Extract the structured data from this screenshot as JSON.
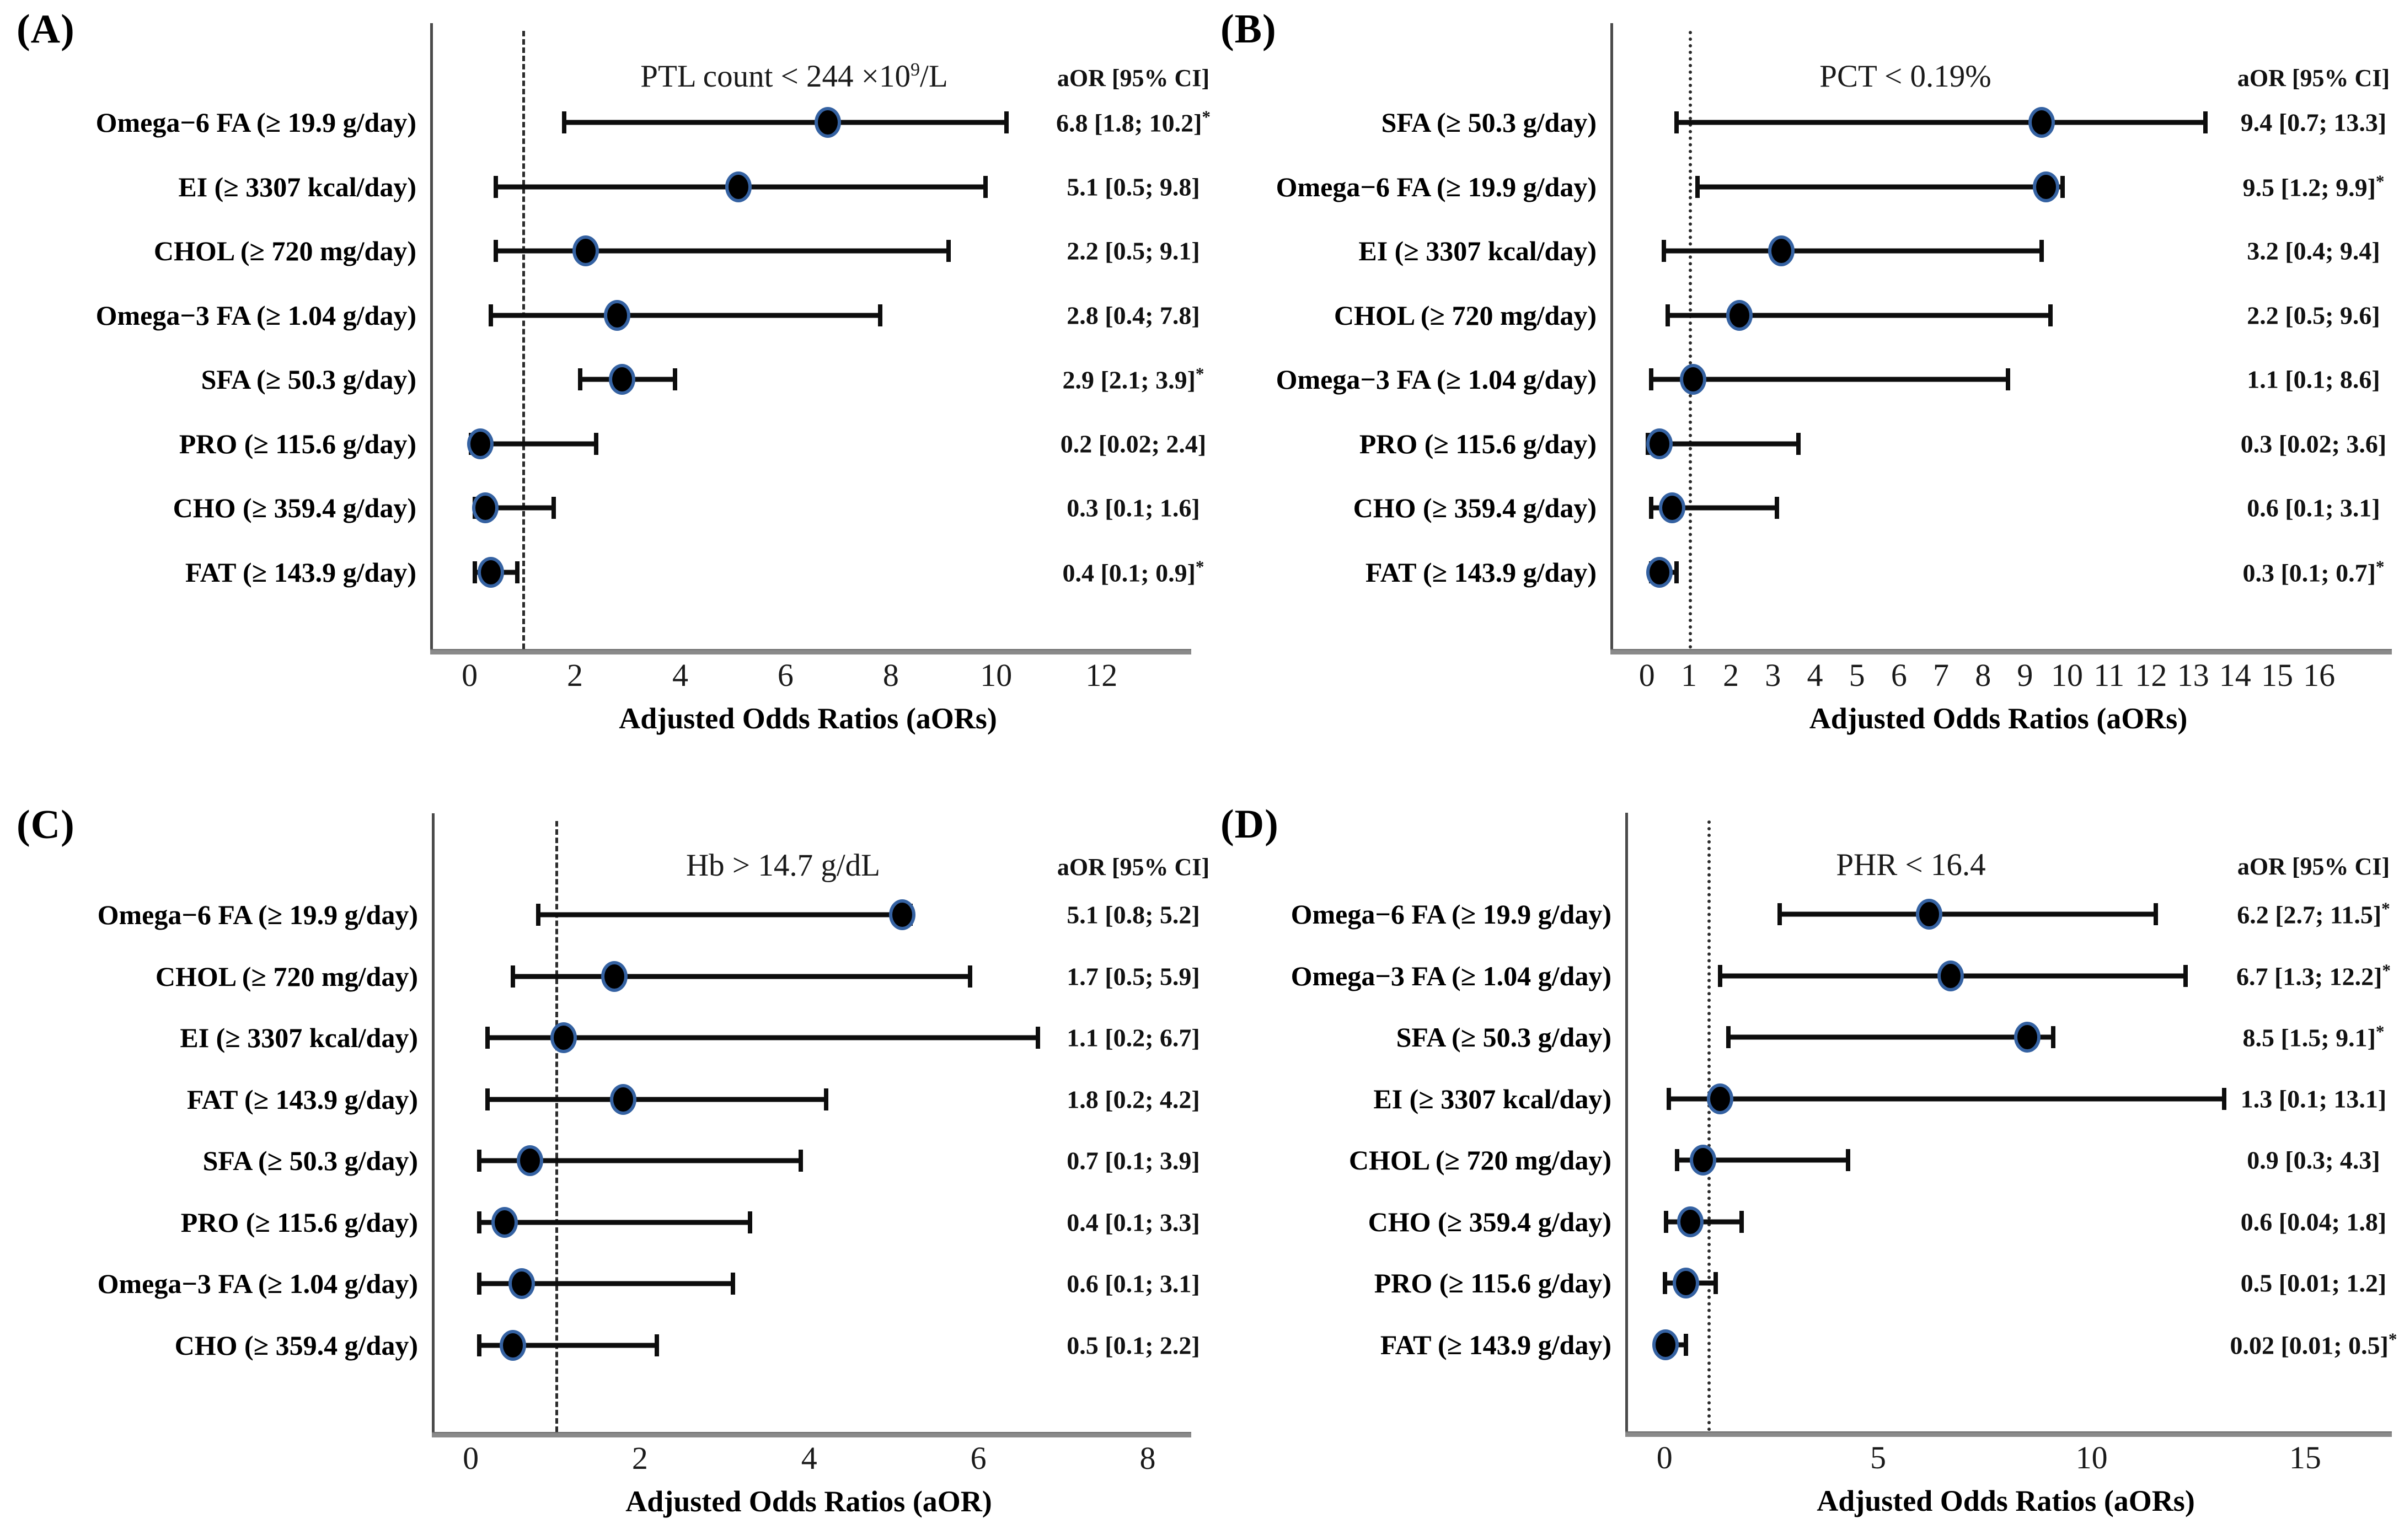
{
  "chart_data": {
    "type": "forest-plot-grid",
    "description": "Four forest plots of adjusted odds ratios (aOR) with 95% CI for dietary intake factors",
    "colors": {
      "marker": "#000000",
      "marker_ring": "#3e73be",
      "ci_line": "#0d0d0d",
      "axis_line": "#8a8a8a",
      "spine": "#4a4a4a",
      "reference_line": "#2b2b2b",
      "text": "#000000",
      "background": "#ffffff"
    },
    "panels": [
      {
        "letter": "(A)",
        "title": {
          "pre": "PTL count < 244 ×10",
          "sup": "9",
          "post": "/L"
        },
        "ci_header": "aOR [95% CI]",
        "xlabel": "Adjusted Odds Ratios (aORs)",
        "xticks": [
          0,
          2,
          4,
          6,
          8,
          10,
          12
        ],
        "xmin": -0.75,
        "xmax": 13.6,
        "reference_x": 1,
        "reference_style": "dashed",
        "rows": [
          {
            "label": "Omega−6 FA (≥ 19.9 g/day)",
            "or": 6.8,
            "lo": 1.8,
            "hi": 10.2,
            "ci_text": "6.8 [1.8; 10.2]",
            "sig": true
          },
          {
            "label": "EI (≥ 3307 kcal/day)",
            "or": 5.1,
            "lo": 0.5,
            "hi": 9.8,
            "ci_text": "5.1 [0.5; 9.8]",
            "sig": false
          },
          {
            "label": "CHOL (≥ 720 mg/day)",
            "or": 2.2,
            "lo": 0.5,
            "hi": 9.1,
            "ci_text": "2.2 [0.5; 9.1]",
            "sig": false
          },
          {
            "label": "Omega−3 FA (≥ 1.04 g/day)",
            "or": 2.8,
            "lo": 0.4,
            "hi": 7.8,
            "ci_text": "2.8 [0.4; 7.8]",
            "sig": false
          },
          {
            "label": "SFA (≥ 50.3 g/day)",
            "or": 2.9,
            "lo": 2.1,
            "hi": 3.9,
            "ci_text": "2.9 [2.1; 3.9]",
            "sig": true
          },
          {
            "label": "PRO (≥ 115.6 g/day)",
            "or": 0.2,
            "lo": 0.02,
            "hi": 2.4,
            "ci_text": "0.2 [0.02; 2.4]",
            "sig": false
          },
          {
            "label": "CHO (≥ 359.4 g/day)",
            "or": 0.3,
            "lo": 0.1,
            "hi": 1.6,
            "ci_text": "0.3 [0.1; 1.6]",
            "sig": false
          },
          {
            "label": "FAT (≥ 143.9 g/day)",
            "or": 0.4,
            "lo": 0.1,
            "hi": 0.9,
            "ci_text": "0.4 [0.1; 0.9]",
            "sig": true
          }
        ]
      },
      {
        "letter": "(B)",
        "title": {
          "pre": "PCT < 0.19%",
          "sup": "",
          "post": ""
        },
        "ci_header": "aOR [95% CI]",
        "xlabel": "Adjusted Odds Ratios (aORs)",
        "xticks": [
          0,
          1,
          2,
          3,
          4,
          5,
          6,
          7,
          8,
          9,
          10,
          11,
          12,
          13,
          14,
          15,
          16
        ],
        "xmin": -0.87,
        "xmax": 17.6,
        "reference_x": 1,
        "reference_style": "dotted",
        "rows": [
          {
            "label": "SFA (≥ 50.3 g/day)",
            "or": 9.4,
            "lo": 0.7,
            "hi": 13.3,
            "ci_text": "9.4 [0.7; 13.3]",
            "sig": false
          },
          {
            "label": "Omega−6 FA (≥ 19.9 g/day)",
            "or": 9.5,
            "lo": 1.2,
            "hi": 9.9,
            "ci_text": "9.5 [1.2; 9.9]",
            "sig": true
          },
          {
            "label": "EI (≥ 3307 kcal/day)",
            "or": 3.2,
            "lo": 0.4,
            "hi": 9.4,
            "ci_text": "3.2 [0.4; 9.4]",
            "sig": false
          },
          {
            "label": "CHOL (≥ 720 mg/day)",
            "or": 2.2,
            "lo": 0.5,
            "hi": 9.6,
            "ci_text": "2.2 [0.5; 9.6]",
            "sig": false
          },
          {
            "label": "Omega−3 FA (≥ 1.04 g/day)",
            "or": 1.1,
            "lo": 0.1,
            "hi": 8.6,
            "ci_text": "1.1 [0.1; 8.6]",
            "sig": false
          },
          {
            "label": "PRO (≥ 115.6 g/day)",
            "or": 0.3,
            "lo": 0.02,
            "hi": 3.6,
            "ci_text": "0.3 [0.02; 3.6]",
            "sig": false
          },
          {
            "label": "CHO (≥ 359.4 g/day)",
            "or": 0.6,
            "lo": 0.1,
            "hi": 3.1,
            "ci_text": "0.6 [0.1; 3.1]",
            "sig": false
          },
          {
            "label": "FAT (≥ 143.9 g/day)",
            "or": 0.3,
            "lo": 0.1,
            "hi": 0.7,
            "ci_text": "0.3 [0.1; 0.7]",
            "sig": true
          }
        ]
      },
      {
        "letter": "(C)",
        "title": {
          "pre": "Hb > 14.7 g/dL",
          "sup": "",
          "post": ""
        },
        "ci_header": "aOR [95% CI]",
        "xlabel": "Adjusted Odds Ratios (aOR)",
        "xticks": [
          0,
          2,
          4,
          6,
          8
        ],
        "xmin": -0.46,
        "xmax": 8.45,
        "reference_x": 1,
        "reference_style": "dashed",
        "rows": [
          {
            "label": "Omega−6 FA (≥ 19.9 g/day)",
            "or": 5.1,
            "lo": 0.8,
            "hi": 5.2,
            "ci_text": "5.1 [0.8; 5.2]",
            "sig": false
          },
          {
            "label": "CHOL (≥ 720 mg/day)",
            "or": 1.7,
            "lo": 0.5,
            "hi": 5.9,
            "ci_text": "1.7 [0.5; 5.9]",
            "sig": false
          },
          {
            "label": "EI (≥ 3307 kcal/day)",
            "or": 1.1,
            "lo": 0.2,
            "hi": 6.7,
            "ci_text": "1.1 [0.2; 6.7]",
            "sig": false
          },
          {
            "label": "FAT (≥ 143.9 g/day)",
            "or": 1.8,
            "lo": 0.2,
            "hi": 4.2,
            "ci_text": "1.8 [0.2; 4.2]",
            "sig": false
          },
          {
            "label": "SFA (≥ 50.3 g/day)",
            "or": 0.7,
            "lo": 0.1,
            "hi": 3.9,
            "ci_text": "0.7 [0.1; 3.9]",
            "sig": false
          },
          {
            "label": "PRO (≥ 115.6 g/day)",
            "or": 0.4,
            "lo": 0.1,
            "hi": 3.3,
            "ci_text": "0.4 [0.1; 3.3]",
            "sig": false
          },
          {
            "label": "Omega−3 FA (≥ 1.04 g/day)",
            "or": 0.6,
            "lo": 0.1,
            "hi": 3.1,
            "ci_text": "0.6 [0.1; 3.1]",
            "sig": false
          },
          {
            "label": "CHO (≥ 359.4 g/day)",
            "or": 0.5,
            "lo": 0.1,
            "hi": 2.2,
            "ci_text": "0.5 [0.1; 2.2]",
            "sig": false
          }
        ]
      },
      {
        "letter": "(D)",
        "title": {
          "pre": "PHR < 16.4",
          "sup": "",
          "post": ""
        },
        "ci_header": "aOR [95% CI]",
        "xlabel": "Adjusted Odds Ratios (aORs)",
        "xticks": [
          0,
          5,
          10,
          15
        ],
        "xmin": -0.92,
        "xmax": 16.9,
        "reference_x": 1,
        "reference_style": "dotted",
        "rows": [
          {
            "label": "Omega−6 FA (≥ 19.9 g/day)",
            "or": 6.2,
            "lo": 2.7,
            "hi": 11.5,
            "ci_text": "6.2 [2.7; 11.5]",
            "sig": true
          },
          {
            "label": "Omega−3 FA (≥ 1.04 g/day)",
            "or": 6.7,
            "lo": 1.3,
            "hi": 12.2,
            "ci_text": "6.7 [1.3; 12.2]",
            "sig": true
          },
          {
            "label": "SFA (≥ 50.3 g/day)",
            "or": 8.5,
            "lo": 1.5,
            "hi": 9.1,
            "ci_text": "8.5 [1.5; 9.1]",
            "sig": true
          },
          {
            "label": "EI (≥ 3307 kcal/day)",
            "or": 1.3,
            "lo": 0.1,
            "hi": 13.1,
            "ci_text": "1.3 [0.1; 13.1]",
            "sig": false
          },
          {
            "label": "CHOL (≥ 720 mg/day)",
            "or": 0.9,
            "lo": 0.3,
            "hi": 4.3,
            "ci_text": "0.9 [0.3; 4.3]",
            "sig": false
          },
          {
            "label": "CHO (≥ 359.4 g/day)",
            "or": 0.6,
            "lo": 0.04,
            "hi": 1.8,
            "ci_text": "0.6 [0.04; 1.8]",
            "sig": false
          },
          {
            "label": "PRO (≥ 115.6 g/day)",
            "or": 0.5,
            "lo": 0.01,
            "hi": 1.2,
            "ci_text": "0.5 [0.01; 1.2]",
            "sig": false
          },
          {
            "label": "FAT (≥ 143.9 g/day)",
            "or": 0.02,
            "lo": 0.01,
            "hi": 0.5,
            "ci_text": "0.02 [0.01; 0.5]",
            "sig": true
          }
        ]
      }
    ]
  }
}
